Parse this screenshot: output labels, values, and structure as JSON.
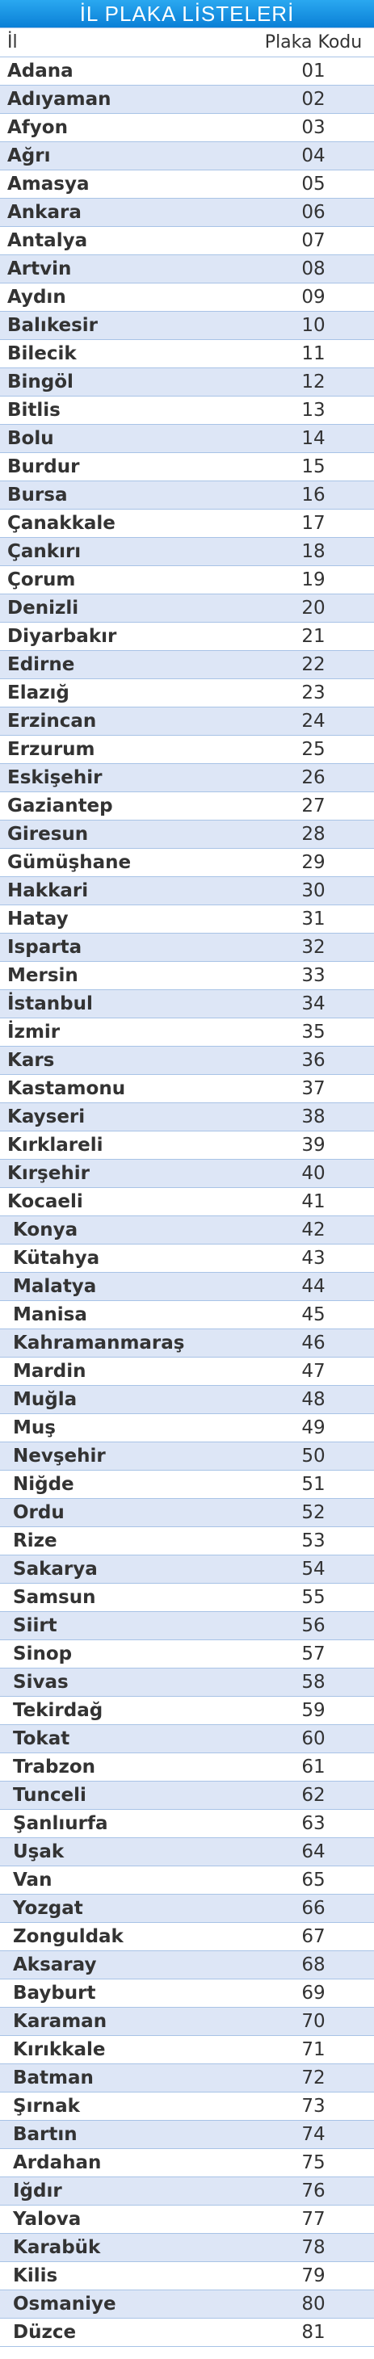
{
  "title": "İL PLAKA LİSTELERİ",
  "headers": {
    "name": "İl",
    "code": "Plaka Kodu"
  },
  "rows": [
    {
      "name": "Adana",
      "code": "01"
    },
    {
      "name": "Adıyaman",
      "code": "02"
    },
    {
      "name": "Afyon",
      "code": "03"
    },
    {
      "name": "Ağrı",
      "code": "04"
    },
    {
      "name": "Amasya",
      "code": "05"
    },
    {
      "name": "Ankara",
      "code": "06"
    },
    {
      "name": "Antalya",
      "code": "07"
    },
    {
      "name": "Artvin",
      "code": "08"
    },
    {
      "name": "Aydın",
      "code": "09"
    },
    {
      "name": "Balıkesir",
      "code": "10"
    },
    {
      "name": "Bilecik",
      "code": "11"
    },
    {
      "name": "Bingöl",
      "code": "12"
    },
    {
      "name": "Bitlis",
      "code": "13"
    },
    {
      "name": "Bolu",
      "code": "14"
    },
    {
      "name": "Burdur",
      "code": "15"
    },
    {
      "name": "Bursa",
      "code": "16"
    },
    {
      "name": "Çanakkale",
      "code": "17"
    },
    {
      "name": "Çankırı",
      "code": "18"
    },
    {
      "name": "Çorum",
      "code": "19"
    },
    {
      "name": "Denizli",
      "code": "20"
    },
    {
      "name": "Diyarbakır",
      "code": "21"
    },
    {
      "name": "Edirne",
      "code": "22"
    },
    {
      "name": "Elazığ",
      "code": "23"
    },
    {
      "name": "Erzincan",
      "code": "24"
    },
    {
      "name": "Erzurum",
      "code": "25"
    },
    {
      "name": "Eskişehir",
      "code": "26"
    },
    {
      "name": "Gaziantep",
      "code": "27"
    },
    {
      "name": "Giresun",
      "code": "28"
    },
    {
      "name": "Gümüşhane",
      "code": "29"
    },
    {
      "name": "Hakkari",
      "code": "30"
    },
    {
      "name": "Hatay",
      "code": "31"
    },
    {
      "name": "Isparta",
      "code": "32"
    },
    {
      "name": "Mersin",
      "code": "33"
    },
    {
      "name": "İstanbul",
      "code": "34"
    },
    {
      "name": "İzmir",
      "code": "35"
    },
    {
      "name": "Kars",
      "code": "36"
    },
    {
      "name": "Kastamonu",
      "code": "37"
    },
    {
      "name": "Kayseri",
      "code": "38"
    },
    {
      "name": "Kırklareli",
      "code": "39"
    },
    {
      "name": "Kırşehir",
      "code": "40"
    },
    {
      "name": "Kocaeli",
      "code": "41"
    },
    {
      "name": "Konya",
      "code": "42"
    },
    {
      "name": "Kütahya",
      "code": "43"
    },
    {
      "name": "Malatya",
      "code": "44"
    },
    {
      "name": "Manisa",
      "code": "45"
    },
    {
      "name": "Kahramanmaraş",
      "code": "46"
    },
    {
      "name": "Mardin",
      "code": "47"
    },
    {
      "name": "Muğla",
      "code": "48"
    },
    {
      "name": "Muş",
      "code": "49"
    },
    {
      "name": "Nevşehir",
      "code": "50"
    },
    {
      "name": "Niğde",
      "code": "51"
    },
    {
      "name": "Ordu",
      "code": "52"
    },
    {
      "name": "Rize",
      "code": "53"
    },
    {
      "name": "Sakarya",
      "code": "54"
    },
    {
      "name": "Samsun",
      "code": "55"
    },
    {
      "name": "Siirt",
      "code": "56"
    },
    {
      "name": "Sinop",
      "code": "57"
    },
    {
      "name": "Sivas",
      "code": "58"
    },
    {
      "name": "Tekirdağ",
      "code": "59"
    },
    {
      "name": "Tokat",
      "code": "60"
    },
    {
      "name": "Trabzon",
      "code": "61"
    },
    {
      "name": "Tunceli",
      "code": "62"
    },
    {
      "name": "Şanlıurfa",
      "code": "63"
    },
    {
      "name": "Uşak",
      "code": "64"
    },
    {
      "name": "Van",
      "code": "65"
    },
    {
      "name": "Yozgat",
      "code": "66"
    },
    {
      "name": "Zonguldak",
      "code": "67"
    },
    {
      "name": "Aksaray",
      "code": "68"
    },
    {
      "name": "Bayburt",
      "code": "69"
    },
    {
      "name": "Karaman",
      "code": "70"
    },
    {
      "name": "Kırıkkale",
      "code": "71"
    },
    {
      "name": "Batman",
      "code": "72"
    },
    {
      "name": "Şırnak",
      "code": "73"
    },
    {
      "name": "Bartın",
      "code": "74"
    },
    {
      "name": "Ardahan",
      "code": "75"
    },
    {
      "name": "Iğdır",
      "code": "76"
    },
    {
      "name": "Yalova",
      "code": "77"
    },
    {
      "name": "Karabük",
      "code": "78"
    },
    {
      "name": "Kilis",
      "code": "79"
    },
    {
      "name": "Osmaniye",
      "code": "80"
    },
    {
      "name": "Düzce",
      "code": "81"
    }
  ]
}
